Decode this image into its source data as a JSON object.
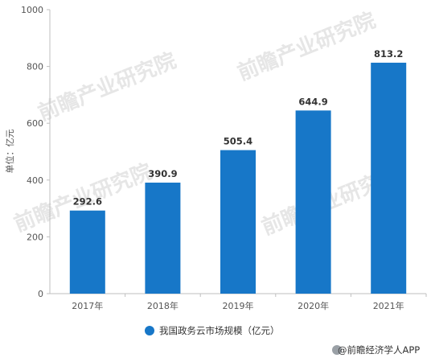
{
  "chart_data": {
    "type": "bar",
    "categories": [
      "2017年",
      "2018年",
      "2019年",
      "2020年",
      "2021年"
    ],
    "series": [
      {
        "name": "我国政务云市场规模（亿元）",
        "values": [
          292.6,
          390.9,
          505.4,
          644.9,
          813.2
        ]
      }
    ],
    "value_labels": [
      "292.6",
      "390.9",
      "505.4",
      "644.9",
      "813.2"
    ],
    "ylabel": "单位：亿元",
    "xlabel": "",
    "ylim": [
      0,
      1000
    ],
    "yticks": [
      0,
      200,
      400,
      600,
      800,
      1000
    ],
    "grid": false,
    "legend_position": "bottom",
    "bar_color": "#1777c8"
  },
  "watermark": "前瞻产业研究院",
  "source": "@前瞻经济学人APP"
}
